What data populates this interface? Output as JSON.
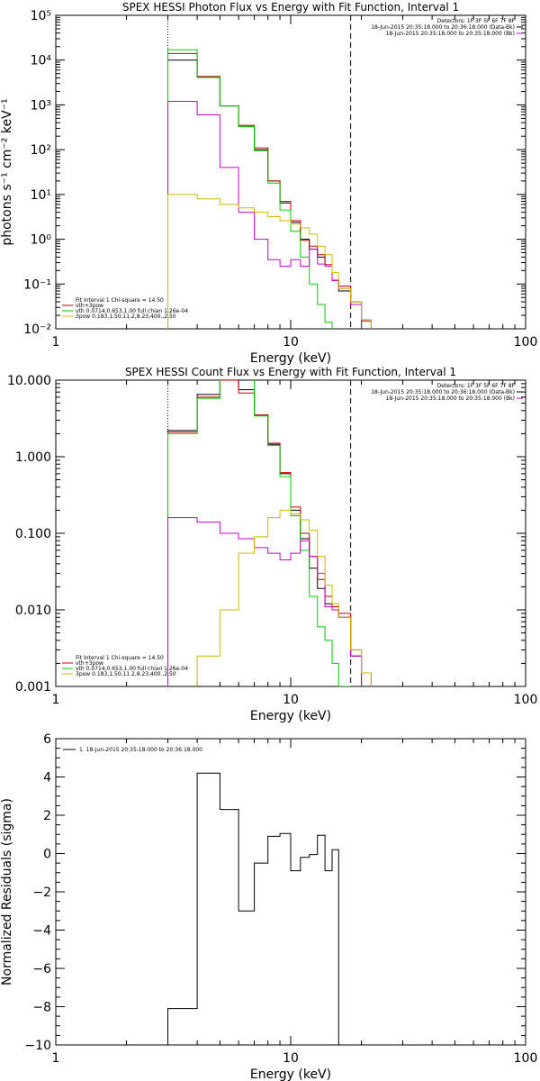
{
  "colors": {
    "background": "#ffffff",
    "axis": "#000000",
    "red": "#cc0000",
    "green": "#00cc00",
    "magenta": "#cc00cc",
    "yellow": "#ccbb00"
  },
  "chart_data": [
    {
      "type": "line",
      "title": "SPEX HESSI Photon Flux vs Energy with Fit Function, Interval 1",
      "xlabel": "Energy (keV)",
      "ylabel": "photons s⁻¹ cm⁻² keV⁻¹",
      "xscale": "log",
      "yscale": "log",
      "xlim": [
        1,
        100
      ],
      "ylim": [
        0.01,
        100000
      ],
      "xticks": [
        1,
        10,
        100
      ],
      "xtick_labels": [
        "1",
        "10",
        "100"
      ],
      "yticks": [
        0.01,
        0.1,
        1,
        10,
        100,
        1000,
        10000,
        100000
      ],
      "ytick_labels": [
        "10⁻²",
        "10⁻¹",
        "10⁰",
        "10¹",
        "10²",
        "10³",
        "10⁴",
        "10⁵"
      ],
      "fit_range_lines_keV": [
        3.0,
        18.0
      ],
      "legend_top_right": [
        "Detectors: 1F 3F 5F 6F 7F 8F",
        "18-Jun-2015 20:35:18.000 to 20:36:18.000 (Data-Bk)",
        "18-Jun-2015 20:35:18.000 to 20:35:18.000 (Bk)"
      ],
      "legend_bottom_left": [
        "Fit Interval 1   Chi-square = 14.50",
        "vth+3pow",
        "vth 0.0714,0.653,1.00  full chian 1.26e-04",
        "3pow 0.183,1.50,11.2,8.23,400.,2.50"
      ],
      "edges": [
        3.0,
        4.0,
        5.0,
        6.0,
        7.0,
        8.0,
        9.0,
        10.0,
        11.0,
        12.0,
        13.0,
        14.0,
        15.0,
        16.0,
        18.0,
        20.0,
        22.0
      ],
      "series": [
        {
          "color": "black",
          "values": [
            10000,
            4200,
            950,
            330,
            100,
            20,
            6.5,
            2.4,
            1.0,
            0.6,
            0.4,
            0.25,
            0.12,
            0.07,
            0.04,
            0.0,
            0.0
          ]
        },
        {
          "color": "red",
          "values": [
            14000,
            4300,
            950,
            350,
            110,
            20,
            7.0,
            2.6,
            0.95,
            0.7,
            0.45,
            0.27,
            0.12,
            0.09,
            0.035,
            0.015,
            0.0
          ]
        },
        {
          "color": "green",
          "values": [
            17000,
            4100,
            940,
            330,
            95,
            18,
            4.5,
            1.5,
            0.4,
            0.1,
            0.035,
            0.014,
            0.0,
            0.0,
            0.0,
            0.0,
            0.0
          ]
        },
        {
          "color": "magenta",
          "values": [
            1200,
            600,
            40,
            4.0,
            1.0,
            0.35,
            0.25,
            0.35,
            0.25,
            0.6,
            0.28,
            0.25,
            0.12,
            0.08,
            0.035,
            0.0,
            0.0
          ]
        },
        {
          "color": "yellow",
          "values": [
            10,
            8.0,
            6.0,
            5.0,
            4.0,
            3.2,
            2.6,
            2.2,
            1.8,
            1.3,
            0.7,
            0.45,
            0.18,
            0.08,
            0.04,
            0.016,
            0.0
          ]
        }
      ]
    },
    {
      "type": "line",
      "title": "SPEX HESSI Count Flux vs Energy with Fit Function, Interval 1",
      "xlabel": "Energy (keV)",
      "ylabel": "",
      "xscale": "log",
      "yscale": "log",
      "xlim": [
        1,
        100
      ],
      "ylim": [
        0.001,
        10
      ],
      "xticks": [
        1,
        10,
        100
      ],
      "xtick_labels": [
        "1",
        "10",
        "100"
      ],
      "yticks": [
        0.001,
        0.01,
        0.1,
        1,
        10
      ],
      "ytick_labels": [
        "0.001",
        "0.010",
        "0.100",
        "1.000",
        "10.000"
      ],
      "fit_range_lines_keV": [
        3.0,
        18.0
      ],
      "legend_top_right": [
        "Detectors: 1F 3F 5F 6F 7F 8F",
        "18-Jun-2015 20:35:18.000 to 20:36:18.000 (Data-Bk)",
        "18-Jun-2015 20:35:18.000 to 20:35:18.000 (Bk)"
      ],
      "legend_bottom_left": [
        "Fit Interval 1   Chi-square = 14.50",
        "vth+3pow",
        "vth 0.0714,0.653,1.00  full chian 1.26e-04",
        "3pow 0.183,1.50,11.2,8.23,400.,2.50"
      ],
      "edges": [
        3.0,
        4.0,
        5.0,
        6.0,
        7.0,
        8.0,
        9.0,
        10.0,
        11.0,
        12.0,
        13.0,
        14.0,
        15.0,
        16.0,
        18.0,
        20.0,
        22.0
      ],
      "series": [
        {
          "color": "black",
          "values": [
            2.2,
            6.5,
            11.0,
            7.5,
            3.5,
            1.45,
            0.6,
            0.2,
            0.085,
            0.035,
            0.019,
            0.012,
            0.01,
            0.008,
            0.0025,
            0.0,
            0.0
          ]
        },
        {
          "color": "red",
          "values": [
            2.1,
            6.0,
            10.0,
            6.8,
            3.5,
            1.5,
            0.62,
            0.22,
            0.1,
            0.05,
            0.025,
            0.015,
            0.011,
            0.009,
            0.003,
            0.0015,
            0.0
          ]
        },
        {
          "color": "green",
          "values": [
            2.0,
            5.8,
            10.5,
            10.5,
            3.4,
            1.4,
            0.55,
            0.17,
            0.06,
            0.015,
            0.006,
            0.004,
            0.002,
            0.001,
            0.0,
            0.0,
            0.0
          ]
        },
        {
          "color": "magenta",
          "values": [
            0.16,
            0.14,
            0.1,
            0.085,
            0.065,
            0.055,
            0.045,
            0.055,
            0.08,
            0.05,
            0.03,
            0.011,
            0.01,
            0.008,
            0.0025,
            0.0,
            0.0
          ]
        },
        {
          "color": "yellow",
          "values": [
            0.0007,
            0.0025,
            0.01,
            0.055,
            0.09,
            0.16,
            0.2,
            0.18,
            0.15,
            0.11,
            0.05,
            0.021,
            0.012,
            0.008,
            0.003,
            0.0015,
            0.0
          ]
        }
      ]
    },
    {
      "type": "line",
      "title": "",
      "xlabel": "Energy (keV)",
      "ylabel": "Normalized Residuals (sigma)",
      "xscale": "log",
      "yscale": "linear",
      "xlim": [
        1,
        100
      ],
      "ylim": [
        -10,
        6
      ],
      "xticks": [
        1,
        10,
        100
      ],
      "xtick_labels": [
        "1",
        "10",
        "100"
      ],
      "yticks": [
        -10,
        -8,
        -6,
        -4,
        -2,
        0,
        2,
        4,
        6
      ],
      "ytick_labels": [
        "−10",
        "−8",
        "−6",
        "−4",
        "−2",
        "0",
        "2",
        "4",
        "6"
      ],
      "legend_top_left": [
        "1. 18-Jun-2015 20:35:18.000 to 20:36:18.000"
      ],
      "edges": [
        3.0,
        4.0,
        5.0,
        6.0,
        7.0,
        8.0,
        9.0,
        10.0,
        11.0,
        12.0,
        13.0,
        14.0,
        15.0,
        16.0,
        18.0
      ],
      "series": [
        {
          "color": "black",
          "values": [
            -8.1,
            4.2,
            2.3,
            -3.0,
            -0.5,
            0.9,
            1.05,
            -0.9,
            -0.2,
            -0.05,
            0.95,
            -0.9,
            0.2
          ]
        }
      ],
      "residual_start": -10.0,
      "residual_end": -10.0
    }
  ]
}
